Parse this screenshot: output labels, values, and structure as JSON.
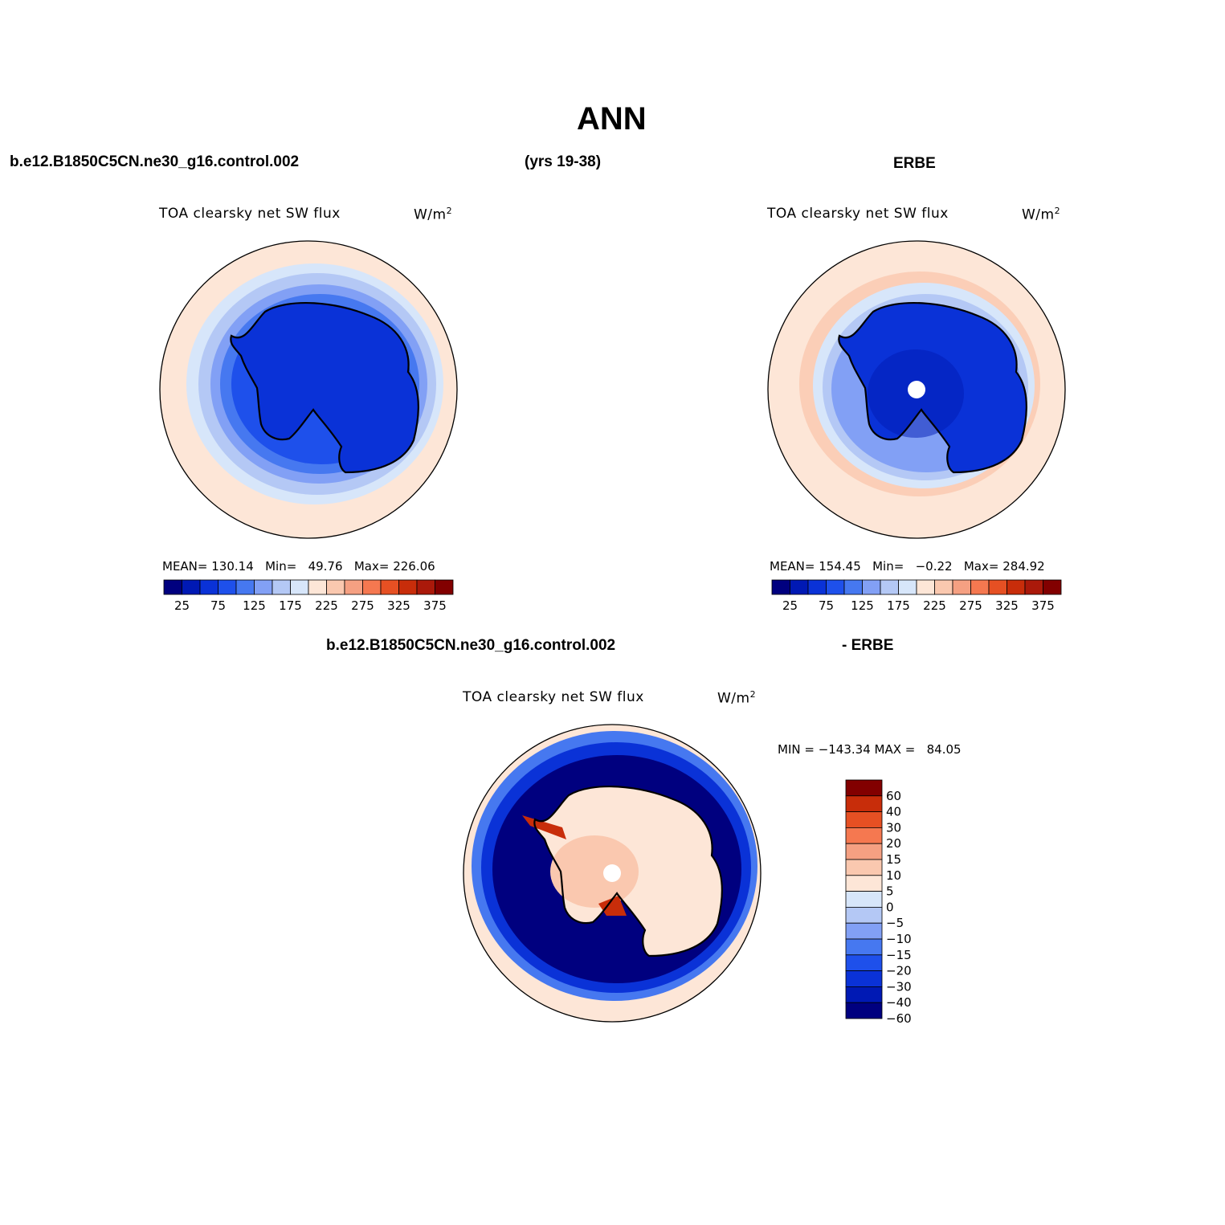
{
  "title": "ANN",
  "case_name": "b.e12.B1850C5CN.ne30_g16.control.002",
  "years": "(yrs 19-38)",
  "obs_name": "ERBE",
  "diff_obs_label": "- ERBE",
  "colors": {
    "abs_palette": [
      "#00007f",
      "#0019b4",
      "#0a32d7",
      "#1e50eb",
      "#4678f0",
      "#82a0f5",
      "#b4c8f5",
      "#d7e6fa",
      "#fde6d7",
      "#fac8af",
      "#f5a082",
      "#f57850",
      "#e65023",
      "#c82d0a",
      "#aa190a",
      "#820000"
    ],
    "diff_palette": [
      "#00007f",
      "#0019b4",
      "#0a32d7",
      "#1e50eb",
      "#4678f0",
      "#82a0f5",
      "#b4c8f5",
      "#d7e6fa",
      "#fde6d7",
      "#fac8af",
      "#f5a082",
      "#f57850",
      "#e65023",
      "#c82d0a",
      "#820000"
    ]
  },
  "panels": [
    {
      "id": "model",
      "var_label": "TOA clearsky net SW flux",
      "units": "W/m",
      "units_exp": "2",
      "mean_label": "MEAN=",
      "mean": "130.14",
      "min_label": "Min=",
      "min": "49.76",
      "max_label": "Max=",
      "max": "226.06",
      "colorbar_ticks": [
        "25",
        "75",
        "125",
        "175",
        "225",
        "275",
        "325",
        "375"
      ]
    },
    {
      "id": "obs",
      "var_label": "TOA clearsky net SW flux",
      "units": "W/m",
      "units_exp": "2",
      "mean_label": "MEAN=",
      "mean": "154.45",
      "min_label": "Min=",
      "min": "−0.22",
      "max_label": "Max=",
      "max": "284.92",
      "colorbar_ticks": [
        "25",
        "75",
        "125",
        "175",
        "225",
        "275",
        "325",
        "375"
      ]
    },
    {
      "id": "diff",
      "var_label": "TOA clearsky net SW flux",
      "units": "W/m",
      "units_exp": "2",
      "minmax_text": "MIN = −143.34 MAX =   84.05",
      "colorbar_ticks": [
        "60",
        "40",
        "30",
        "20",
        "15",
        "10",
        "5",
        "0",
        "−5",
        "−10",
        "−15",
        "−20",
        "−30",
        "−40",
        "−60"
      ]
    }
  ]
}
